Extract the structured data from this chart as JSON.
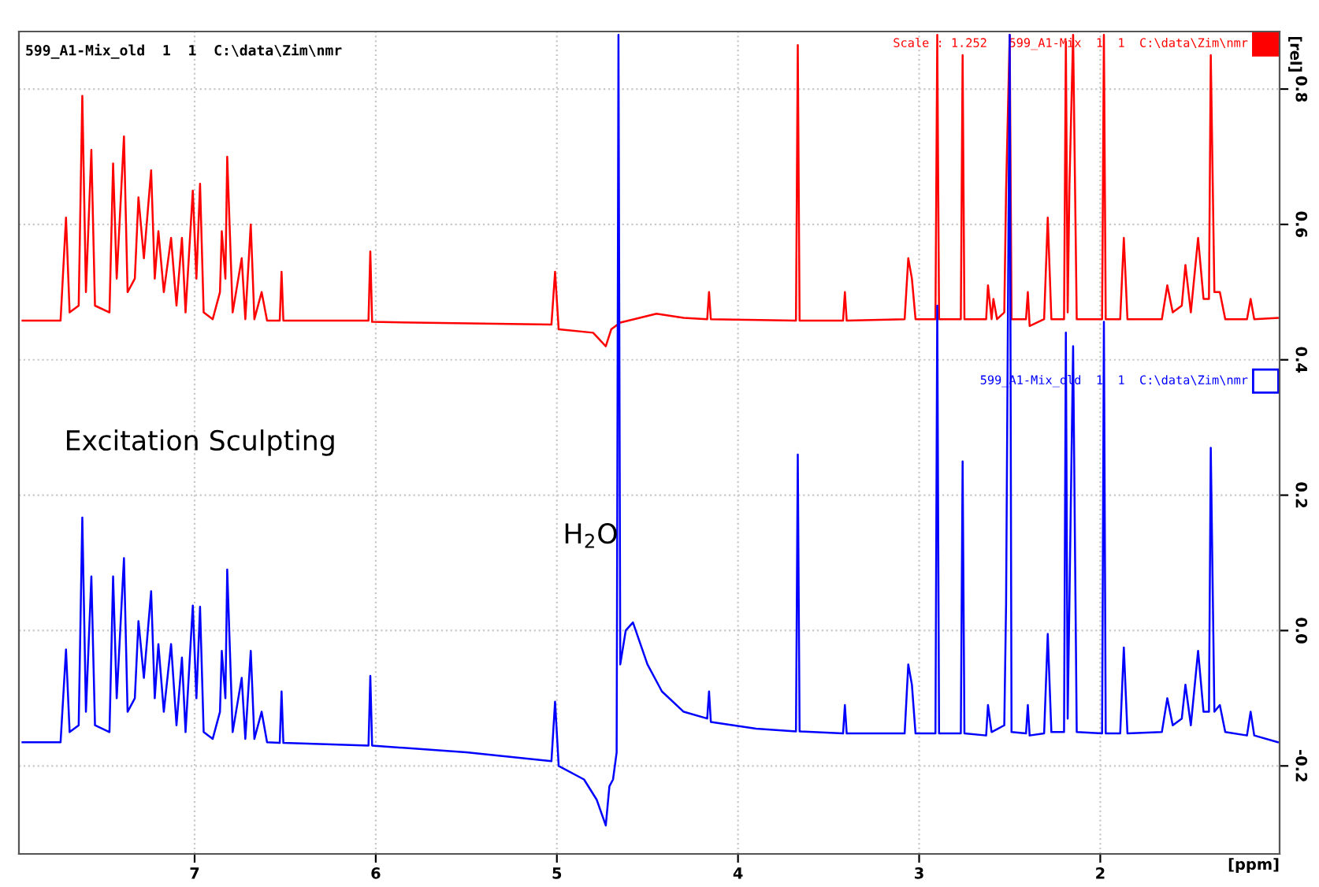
{
  "chart_data": {
    "type": "line",
    "title": "599_A1-Mix_old  1  1  C:\\data\\Zim\\nmr",
    "xlabel": "[ppm]",
    "ylabel": "[rel]",
    "xlim": [
      7.97,
      1.01
    ],
    "xticks": [
      7,
      6,
      5,
      4,
      3,
      2
    ],
    "ylim": [
      -0.33,
      0.885
    ],
    "yticks": [
      {
        "value": 0.8,
        "label": "0.8"
      },
      {
        "value": 0.6,
        "label": "0.6"
      },
      {
        "value": 0.4,
        "label": "0.4"
      },
      {
        "value": 0.2,
        "label": "0.2"
      },
      {
        "value": 0.0,
        "label": "0.0"
      },
      {
        "value": -0.2,
        "label": "-0.2"
      }
    ],
    "grid": true,
    "line_style": "solid",
    "marker": "none",
    "legend": "top right",
    "annotations": [
      "Excitation Sculpting",
      {
        "text": "H$_{2}$O",
        "x": 4.66,
        "y": 0.12
      }
    ],
    "series": [
      {
        "name": "Scale : 1.252   599_A1-Mix  1  1  C:\\data\\Zim\\nmr",
        "color": "#ff0000",
        "x": [
          7.95,
          7.74,
          7.71,
          7.69,
          7.64,
          7.62,
          7.6,
          7.57,
          7.55,
          7.47,
          7.45,
          7.43,
          7.39,
          7.37,
          7.33,
          7.31,
          7.28,
          7.24,
          7.22,
          7.2,
          7.17,
          7.13,
          7.1,
          7.07,
          7.05,
          7.01,
          6.99,
          6.97,
          6.95,
          6.9,
          6.86,
          6.85,
          6.83,
          6.82,
          6.79,
          6.74,
          6.72,
          6.69,
          6.67,
          6.64,
          6.63,
          6.6,
          6.53,
          6.52,
          6.51,
          6.04,
          6.03,
          6.02,
          5.03,
          5.01,
          4.99,
          4.8,
          4.73,
          4.7,
          4.65,
          4.45,
          4.3,
          4.17,
          4.16,
          4.15,
          3.68,
          3.67,
          3.66,
          3.42,
          3.41,
          3.4,
          3.08,
          3.06,
          3.04,
          3.02,
          2.91,
          2.9,
          2.89,
          2.77,
          2.76,
          2.75,
          2.63,
          2.62,
          2.6,
          2.59,
          2.57,
          2.53,
          2.52,
          2.5,
          2.49,
          2.41,
          2.4,
          2.39,
          2.31,
          2.29,
          2.27,
          2.2,
          2.19,
          2.18,
          2.17,
          2.15,
          2.13,
          1.99,
          1.98,
          1.97,
          1.89,
          1.87,
          1.85,
          1.66,
          1.63,
          1.6,
          1.55,
          1.53,
          1.5,
          1.46,
          1.43,
          1.4,
          1.39,
          1.37,
          1.34,
          1.31,
          1.19,
          1.17,
          1.15,
          1.02
        ],
        "values": [
          0.458,
          0.458,
          0.61,
          0.47,
          0.48,
          0.79,
          0.5,
          0.71,
          0.48,
          0.47,
          0.69,
          0.52,
          0.73,
          0.5,
          0.52,
          0.64,
          0.55,
          0.68,
          0.52,
          0.59,
          0.5,
          0.58,
          0.48,
          0.58,
          0.47,
          0.65,
          0.52,
          0.66,
          0.47,
          0.46,
          0.5,
          0.59,
          0.52,
          0.7,
          0.47,
          0.55,
          0.46,
          0.6,
          0.46,
          0.49,
          0.5,
          0.458,
          0.458,
          0.53,
          0.458,
          0.458,
          0.56,
          0.456,
          0.452,
          0.53,
          0.445,
          0.44,
          0.42,
          0.445,
          0.455,
          0.468,
          0.462,
          0.46,
          0.5,
          0.46,
          0.458,
          0.865,
          0.458,
          0.458,
          0.5,
          0.458,
          0.46,
          0.55,
          0.52,
          0.46,
          0.46,
          0.88,
          0.46,
          0.46,
          0.85,
          0.46,
          0.46,
          0.51,
          0.46,
          0.49,
          0.46,
          0.47,
          0.65,
          0.88,
          0.46,
          0.46,
          0.5,
          0.45,
          0.46,
          0.61,
          0.46,
          0.46,
          0.87,
          0.47,
          0.66,
          0.88,
          0.46,
          0.46,
          0.88,
          0.46,
          0.46,
          0.58,
          0.46,
          0.46,
          0.51,
          0.47,
          0.48,
          0.54,
          0.47,
          0.58,
          0.49,
          0.49,
          0.85,
          0.5,
          0.5,
          0.46,
          0.46,
          0.49,
          0.46,
          0.462
        ]
      },
      {
        "name": "599_A1-Mix_old  1  1  C:\\data\\Zim\\nmr",
        "color": "#0000ff",
        "x": [
          7.95,
          7.74,
          7.71,
          7.69,
          7.64,
          7.62,
          7.6,
          7.57,
          7.55,
          7.47,
          7.45,
          7.43,
          7.39,
          7.37,
          7.33,
          7.31,
          7.28,
          7.24,
          7.22,
          7.2,
          7.17,
          7.13,
          7.1,
          7.07,
          7.05,
          7.01,
          6.99,
          6.97,
          6.95,
          6.9,
          6.86,
          6.85,
          6.83,
          6.82,
          6.79,
          6.74,
          6.72,
          6.69,
          6.67,
          6.64,
          6.63,
          6.6,
          6.53,
          6.52,
          6.51,
          6.04,
          6.03,
          6.02,
          5.5,
          5.03,
          5.01,
          4.99,
          4.85,
          4.78,
          4.73,
          4.71,
          4.69,
          4.67,
          4.66,
          4.65,
          4.62,
          4.58,
          4.5,
          4.42,
          4.3,
          4.17,
          4.16,
          4.15,
          3.9,
          3.68,
          3.67,
          3.66,
          3.42,
          3.41,
          3.4,
          3.08,
          3.06,
          3.04,
          3.02,
          2.91,
          2.9,
          2.89,
          2.77,
          2.76,
          2.75,
          2.63,
          2.62,
          2.6,
          2.53,
          2.52,
          2.5,
          2.49,
          2.41,
          2.4,
          2.39,
          2.31,
          2.29,
          2.27,
          2.2,
          2.19,
          2.18,
          2.17,
          2.15,
          2.13,
          1.99,
          1.98,
          1.97,
          1.89,
          1.87,
          1.85,
          1.66,
          1.63,
          1.6,
          1.55,
          1.53,
          1.5,
          1.46,
          1.43,
          1.4,
          1.39,
          1.37,
          1.34,
          1.31,
          1.19,
          1.17,
          1.15,
          1.02
        ],
        "values": [
          -0.165,
          -0.165,
          -0.028,
          -0.15,
          -0.14,
          0.167,
          -0.12,
          0.08,
          -0.14,
          -0.15,
          0.08,
          -0.1,
          0.107,
          -0.12,
          -0.1,
          0.014,
          -0.07,
          0.058,
          -0.1,
          -0.02,
          -0.12,
          -0.02,
          -0.14,
          -0.04,
          -0.15,
          0.037,
          -0.1,
          0.035,
          -0.15,
          -0.16,
          -0.12,
          -0.03,
          -0.1,
          0.09,
          -0.15,
          -0.07,
          -0.16,
          -0.03,
          -0.16,
          -0.13,
          -0.12,
          -0.165,
          -0.166,
          -0.09,
          -0.166,
          -0.17,
          -0.067,
          -0.17,
          -0.18,
          -0.193,
          -0.105,
          -0.2,
          -0.22,
          -0.25,
          -0.288,
          -0.23,
          -0.22,
          -0.18,
          0.88,
          -0.05,
          0.0,
          0.012,
          -0.05,
          -0.09,
          -0.12,
          -0.13,
          -0.09,
          -0.135,
          -0.145,
          -0.149,
          0.26,
          -0.149,
          -0.152,
          -0.11,
          -0.152,
          -0.152,
          -0.05,
          -0.08,
          -0.152,
          -0.152,
          0.48,
          -0.152,
          -0.152,
          0.25,
          -0.152,
          -0.155,
          -0.11,
          -0.15,
          -0.14,
          0.04,
          0.88,
          -0.15,
          -0.152,
          -0.11,
          -0.155,
          -0.152,
          -0.005,
          -0.15,
          -0.15,
          0.44,
          -0.13,
          0.05,
          0.42,
          -0.15,
          -0.152,
          0.456,
          -0.152,
          -0.152,
          -0.025,
          -0.152,
          -0.15,
          -0.1,
          -0.14,
          -0.13,
          -0.08,
          -0.14,
          -0.03,
          -0.12,
          -0.12,
          0.27,
          -0.12,
          -0.11,
          -0.15,
          -0.155,
          -0.12,
          -0.155,
          -0.165
        ]
      }
    ]
  }
}
